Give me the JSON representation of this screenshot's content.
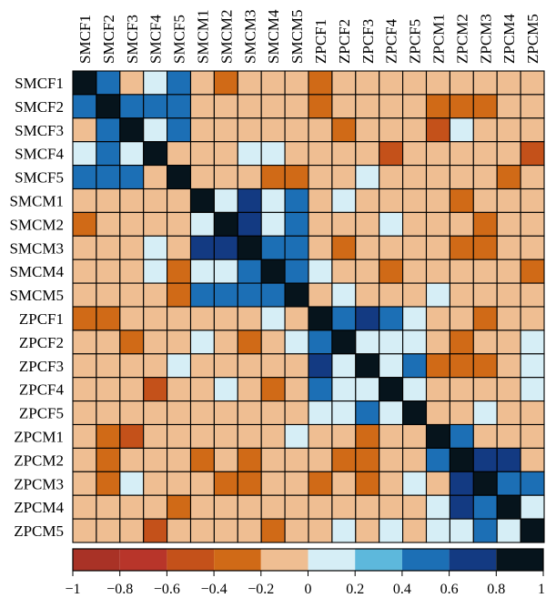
{
  "chart_data": {
    "type": "heatmap",
    "title": "",
    "row_labels": [
      "SMCF1",
      "SMCF2",
      "SMCF3",
      "SMCF4",
      "SMCF5",
      "SMCM1",
      "SMCM2",
      "SMCM3",
      "SMCM4",
      "SMCM5",
      "ZPCF1",
      "ZPCF2",
      "ZPCF3",
      "ZPCF4",
      "ZPCF5",
      "ZPCM1",
      "ZPCM2",
      "ZPCM3",
      "ZPCM4",
      "ZPCM5"
    ],
    "col_labels": [
      "SMCF1",
      "SMCF2",
      "SMCF3",
      "SMCF4",
      "SMCF5",
      "SMCM1",
      "SMCM2",
      "SMCM3",
      "SMCM4",
      "SMCM5",
      "ZPCF1",
      "ZPCF2",
      "ZPCF3",
      "ZPCF4",
      "ZPCF5",
      "ZPCM1",
      "ZPCM2",
      "ZPCM3",
      "ZPCM4",
      "ZPCM5"
    ],
    "value_range": [
      -1,
      1
    ],
    "values": [
      [
        1,
        0.5,
        -0.1,
        0.1,
        0.5,
        -0.1,
        -0.3,
        -0.1,
        -0.1,
        -0.1,
        -0.3,
        -0.1,
        -0.1,
        -0.1,
        -0.1,
        -0.1,
        -0.1,
        -0.1,
        -0.1,
        -0.1
      ],
      [
        0.5,
        1,
        0.5,
        0.5,
        0.5,
        -0.1,
        -0.1,
        -0.1,
        -0.1,
        -0.1,
        -0.3,
        -0.1,
        -0.1,
        -0.1,
        -0.1,
        -0.3,
        -0.3,
        -0.3,
        -0.1,
        -0.1
      ],
      [
        -0.1,
        0.5,
        1,
        0.1,
        0.5,
        -0.1,
        -0.1,
        -0.1,
        -0.1,
        -0.1,
        -0.1,
        -0.3,
        -0.1,
        -0.1,
        -0.1,
        -0.5,
        0.1,
        -0.1,
        -0.1,
        -0.1
      ],
      [
        0.1,
        0.5,
        0.1,
        1,
        -0.1,
        -0.1,
        -0.1,
        0.1,
        0.1,
        -0.1,
        -0.1,
        -0.1,
        -0.1,
        -0.5,
        -0.1,
        -0.1,
        -0.1,
        -0.1,
        -0.1,
        -0.5
      ],
      [
        0.5,
        0.5,
        0.5,
        -0.1,
        1,
        -0.1,
        -0.1,
        -0.1,
        -0.3,
        -0.3,
        -0.1,
        -0.1,
        0.1,
        -0.1,
        -0.1,
        -0.1,
        -0.1,
        -0.1,
        -0.3,
        -0.1
      ],
      [
        -0.1,
        -0.1,
        -0.1,
        -0.1,
        -0.1,
        1,
        0.1,
        0.7,
        0.1,
        0.5,
        -0.1,
        0.1,
        -0.1,
        -0.1,
        -0.1,
        -0.1,
        -0.3,
        -0.1,
        -0.1,
        -0.1
      ],
      [
        -0.3,
        -0.1,
        -0.1,
        -0.1,
        -0.1,
        0.1,
        1,
        0.7,
        0.1,
        0.5,
        -0.1,
        -0.1,
        -0.1,
        0.1,
        -0.1,
        -0.1,
        -0.1,
        -0.3,
        -0.1,
        -0.1
      ],
      [
        -0.1,
        -0.1,
        -0.1,
        0.1,
        -0.1,
        0.7,
        0.7,
        1,
        0.5,
        0.5,
        -0.1,
        -0.3,
        -0.1,
        -0.1,
        -0.1,
        -0.1,
        -0.3,
        -0.3,
        -0.1,
        -0.1
      ],
      [
        -0.1,
        -0.1,
        -0.1,
        0.1,
        -0.3,
        0.1,
        0.1,
        0.5,
        1,
        0.5,
        0.1,
        -0.1,
        -0.1,
        -0.3,
        -0.1,
        -0.1,
        -0.1,
        -0.1,
        -0.1,
        -0.3
      ],
      [
        -0.1,
        -0.1,
        -0.1,
        -0.1,
        -0.3,
        0.5,
        0.5,
        0.5,
        0.5,
        1,
        -0.1,
        0.1,
        -0.1,
        -0.1,
        -0.1,
        0.1,
        -0.1,
        -0.1,
        -0.1,
        -0.1
      ],
      [
        -0.3,
        -0.3,
        -0.1,
        -0.1,
        -0.1,
        -0.1,
        -0.1,
        -0.1,
        0.1,
        -0.1,
        1,
        0.5,
        0.7,
        0.5,
        0.1,
        -0.1,
        -0.1,
        -0.3,
        -0.1,
        -0.1
      ],
      [
        -0.1,
        -0.1,
        -0.3,
        -0.1,
        -0.1,
        0.1,
        -0.1,
        -0.3,
        -0.1,
        0.1,
        0.5,
        1,
        0.1,
        0.1,
        0.1,
        -0.1,
        -0.3,
        -0.1,
        -0.1,
        0.1
      ],
      [
        -0.1,
        -0.1,
        -0.1,
        -0.1,
        0.1,
        -0.1,
        -0.1,
        -0.1,
        -0.1,
        -0.1,
        0.7,
        0.1,
        1,
        0.1,
        0.5,
        -0.3,
        -0.3,
        -0.3,
        -0.1,
        0.1
      ],
      [
        -0.1,
        -0.1,
        -0.1,
        -0.5,
        -0.1,
        -0.1,
        0.1,
        -0.1,
        -0.3,
        -0.1,
        0.5,
        0.1,
        0.1,
        1,
        0.1,
        -0.1,
        -0.1,
        -0.1,
        -0.1,
        0.1
      ],
      [
        -0.1,
        -0.1,
        -0.1,
        -0.1,
        -0.1,
        -0.1,
        -0.1,
        -0.1,
        -0.1,
        -0.1,
        0.1,
        0.1,
        0.5,
        0.1,
        1,
        -0.1,
        -0.1,
        0.1,
        -0.1,
        -0.1
      ],
      [
        -0.1,
        -0.3,
        -0.5,
        -0.1,
        -0.1,
        -0.1,
        -0.1,
        -0.1,
        -0.1,
        0.1,
        -0.1,
        -0.1,
        -0.3,
        -0.1,
        -0.1,
        1,
        0.5,
        -0.1,
        -0.1,
        -0.1
      ],
      [
        -0.1,
        -0.3,
        -0.1,
        -0.1,
        -0.1,
        -0.3,
        -0.1,
        -0.3,
        -0.1,
        -0.1,
        -0.1,
        -0.3,
        -0.3,
        -0.1,
        -0.1,
        0.5,
        1,
        0.7,
        0.7,
        -0.1
      ],
      [
        -0.1,
        -0.3,
        0.1,
        -0.1,
        -0.1,
        -0.1,
        -0.3,
        -0.3,
        -0.1,
        -0.1,
        -0.3,
        -0.1,
        -0.3,
        -0.1,
        0.1,
        -0.1,
        0.7,
        1,
        0.5,
        0.5
      ],
      [
        -0.1,
        -0.1,
        -0.1,
        -0.1,
        -0.3,
        -0.1,
        -0.1,
        -0.1,
        -0.1,
        -0.1,
        -0.1,
        -0.1,
        -0.1,
        -0.1,
        -0.1,
        0.1,
        0.7,
        0.5,
        1,
        0.1
      ],
      [
        -0.1,
        -0.1,
        -0.1,
        -0.5,
        -0.1,
        -0.1,
        -0.1,
        -0.1,
        -0.3,
        -0.1,
        -0.1,
        0.1,
        -0.1,
        0.1,
        -0.1,
        0.1,
        0.1,
        0.5,
        0.1,
        1
      ]
    ],
    "colorbar": {
      "ticks": [
        -1,
        -0.8,
        -0.6,
        -0.4,
        -0.2,
        0,
        0.2,
        0.4,
        0.6,
        0.8,
        1
      ],
      "tick_labels": [
        "−1",
        "−0.8",
        "−0.6",
        "−0.4",
        "−0.2",
        "0",
        "0.2",
        "0.4",
        "0.6",
        "0.8",
        "1"
      ],
      "bins": [
        {
          "from": -1.0,
          "to": -0.8,
          "color": "#a93226"
        },
        {
          "from": -0.8,
          "to": -0.6,
          "color": "#b8352a"
        },
        {
          "from": -0.6,
          "to": -0.4,
          "color": "#c4511a"
        },
        {
          "from": -0.4,
          "to": -0.2,
          "color": "#d06a17"
        },
        {
          "from": -0.2,
          "to": 0.0,
          "color": "#efbe92"
        },
        {
          "from": 0.0,
          "to": 0.2,
          "color": "#d6eef6"
        },
        {
          "from": 0.2,
          "to": 0.4,
          "color": "#5db8dc"
        },
        {
          "from": 0.4,
          "to": 0.6,
          "color": "#1c6fb5"
        },
        {
          "from": 0.6,
          "to": 0.8,
          "color": "#133a82"
        },
        {
          "from": 0.8,
          "to": 1.0,
          "color": "#06141c"
        }
      ]
    }
  }
}
